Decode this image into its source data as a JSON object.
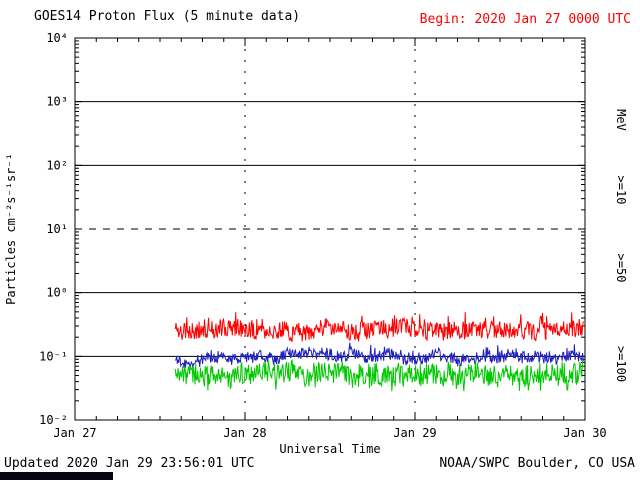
{
  "header": {
    "title": "GOES14 Proton Flux (5 minute data)",
    "begin": "Begin: 2020 Jan 27 0000 UTC"
  },
  "footer": {
    "updated": "Updated 2020 Jan 29 23:56:01 UTC",
    "source": "NOAA/SWPC Boulder, CO USA"
  },
  "chart_data": {
    "type": "line",
    "title": "GOES14 Proton Flux (5 minute data)",
    "begin_label": "Begin: 2020 Jan 27 0000 UTC",
    "xlabel": "Universal Time",
    "ylabel": "Particles  cm⁻²s⁻¹sr⁻¹",
    "right_axis_label": "MeV",
    "x_ticks": [
      "Jan 27",
      "Jan 28",
      "Jan 29",
      "Jan 30"
    ],
    "x_range_days": [
      0,
      3
    ],
    "y_tick_labels": [
      "10⁴",
      "10³",
      "10²",
      "10¹",
      "10⁰",
      "10⁻¹",
      "10⁻²"
    ],
    "y_log_range": [
      -2,
      4
    ],
    "grid": {
      "solid_lines_log": [
        3,
        2,
        0,
        -1
      ],
      "dashed_lines_log": [
        1
      ],
      "vertical_dashed_days": [
        1,
        2
      ]
    },
    "legend_position": "right-edge-rotated",
    "legend": [
      {
        "label": ">=10",
        "color": "#ff0000"
      },
      {
        "label": ">=50",
        "color": "#2020c0"
      },
      {
        "label": ">=100",
        "color": "#00c800"
      }
    ],
    "sample_interval_minutes": 5,
    "series": [
      {
        "name": "Protons >=10 MeV",
        "color": "#ff0000",
        "start_day": 0.59,
        "end_day": 2.99,
        "base_log10": -0.58,
        "noise_log10": 0.14,
        "spike_prob": 0.1,
        "spike_log10": 0.22,
        "clamp_log10": [
          -0.85,
          -0.3
        ],
        "flux_range_approx": [
          0.14,
          0.5
        ],
        "seed": 11
      },
      {
        "name": "Protons >=50 MeV",
        "color": "#2020c0",
        "start_day": 0.59,
        "end_day": 2.99,
        "base_log10": -1.02,
        "noise_log10": 0.09,
        "spike_prob": 0.08,
        "spike_log10": 0.14,
        "clamp_log10": [
          -1.18,
          -0.78
        ],
        "flux_range_approx": [
          0.07,
          0.17
        ],
        "seed": 22
      },
      {
        "name": "Protons >=100 MeV",
        "color": "#00c800",
        "start_day": 0.59,
        "end_day": 2.99,
        "base_log10": -1.28,
        "noise_log10": 0.17,
        "spike_prob": 0.1,
        "spike_log10": -0.22,
        "clamp_log10": [
          -1.55,
          -1.0
        ],
        "flux_range_approx": [
          0.028,
          0.095
        ],
        "seed": 33
      }
    ]
  }
}
